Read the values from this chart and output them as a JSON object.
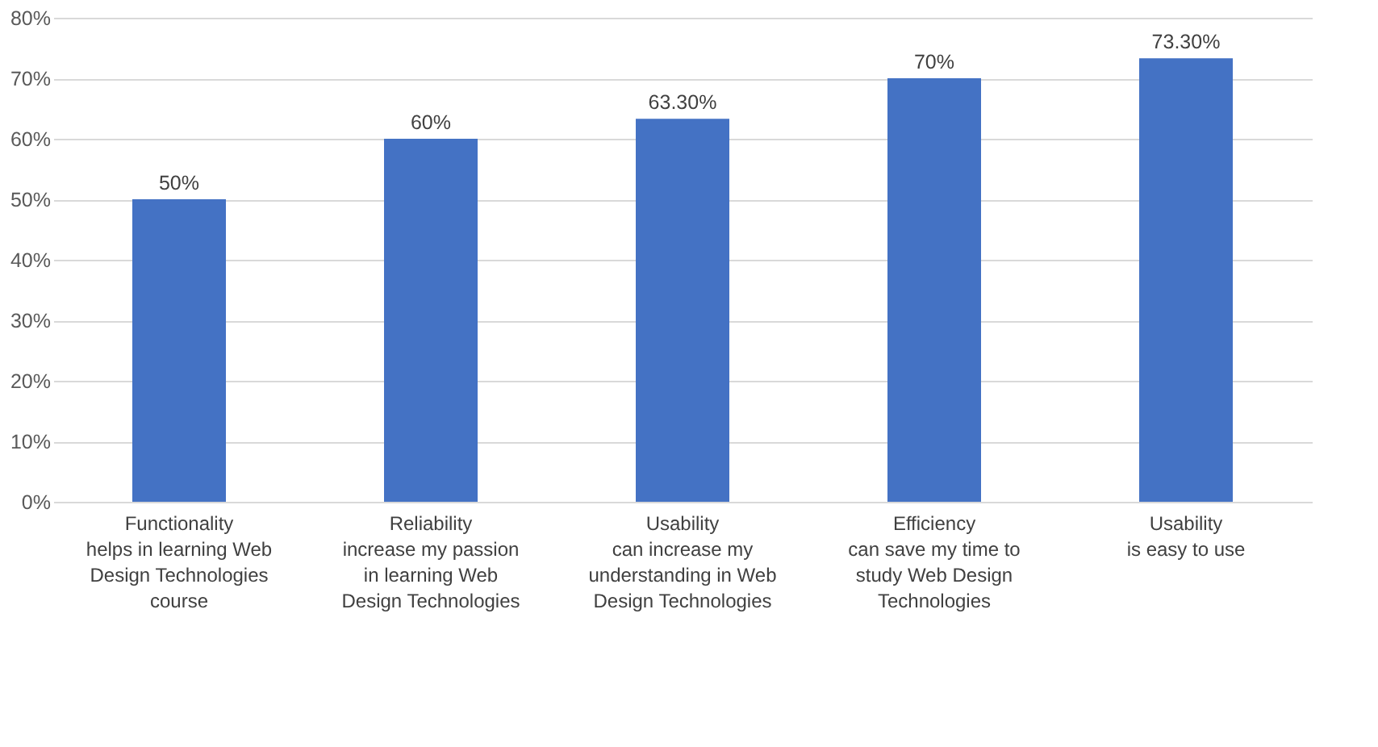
{
  "chart_data": {
    "type": "bar",
    "categories": [
      "Functionality\n\nhelps in learning Web\nDesign Technologies\ncourse",
      "Reliability\n\nincrease my passion\nin learning Web\nDesign Technologies",
      "Usability\n\ncan increase my\nunderstanding in Web\nDesign Technologies",
      "Efficiency\n\ncan save my time to\nstudy Web Design\nTechnologies",
      "Usability\n\nis easy to use"
    ],
    "values": [
      50,
      60,
      63.3,
      70,
      73.3
    ],
    "value_labels": [
      "50%",
      "60%",
      "63.30%",
      "70%",
      "73.30%"
    ],
    "color": "#4472c4",
    "ylim": [
      0,
      80
    ],
    "yticks": [
      {
        "value": 0,
        "label": "0%"
      },
      {
        "value": 10,
        "label": "10%"
      },
      {
        "value": 20,
        "label": "20%"
      },
      {
        "value": 30,
        "label": "30%"
      },
      {
        "value": 40,
        "label": "40%"
      },
      {
        "value": 50,
        "label": "50%"
      },
      {
        "value": 60,
        "label": "60%"
      },
      {
        "value": 70,
        "label": "70%"
      },
      {
        "value": 80,
        "label": "80%"
      }
    ],
    "grid": "y"
  }
}
